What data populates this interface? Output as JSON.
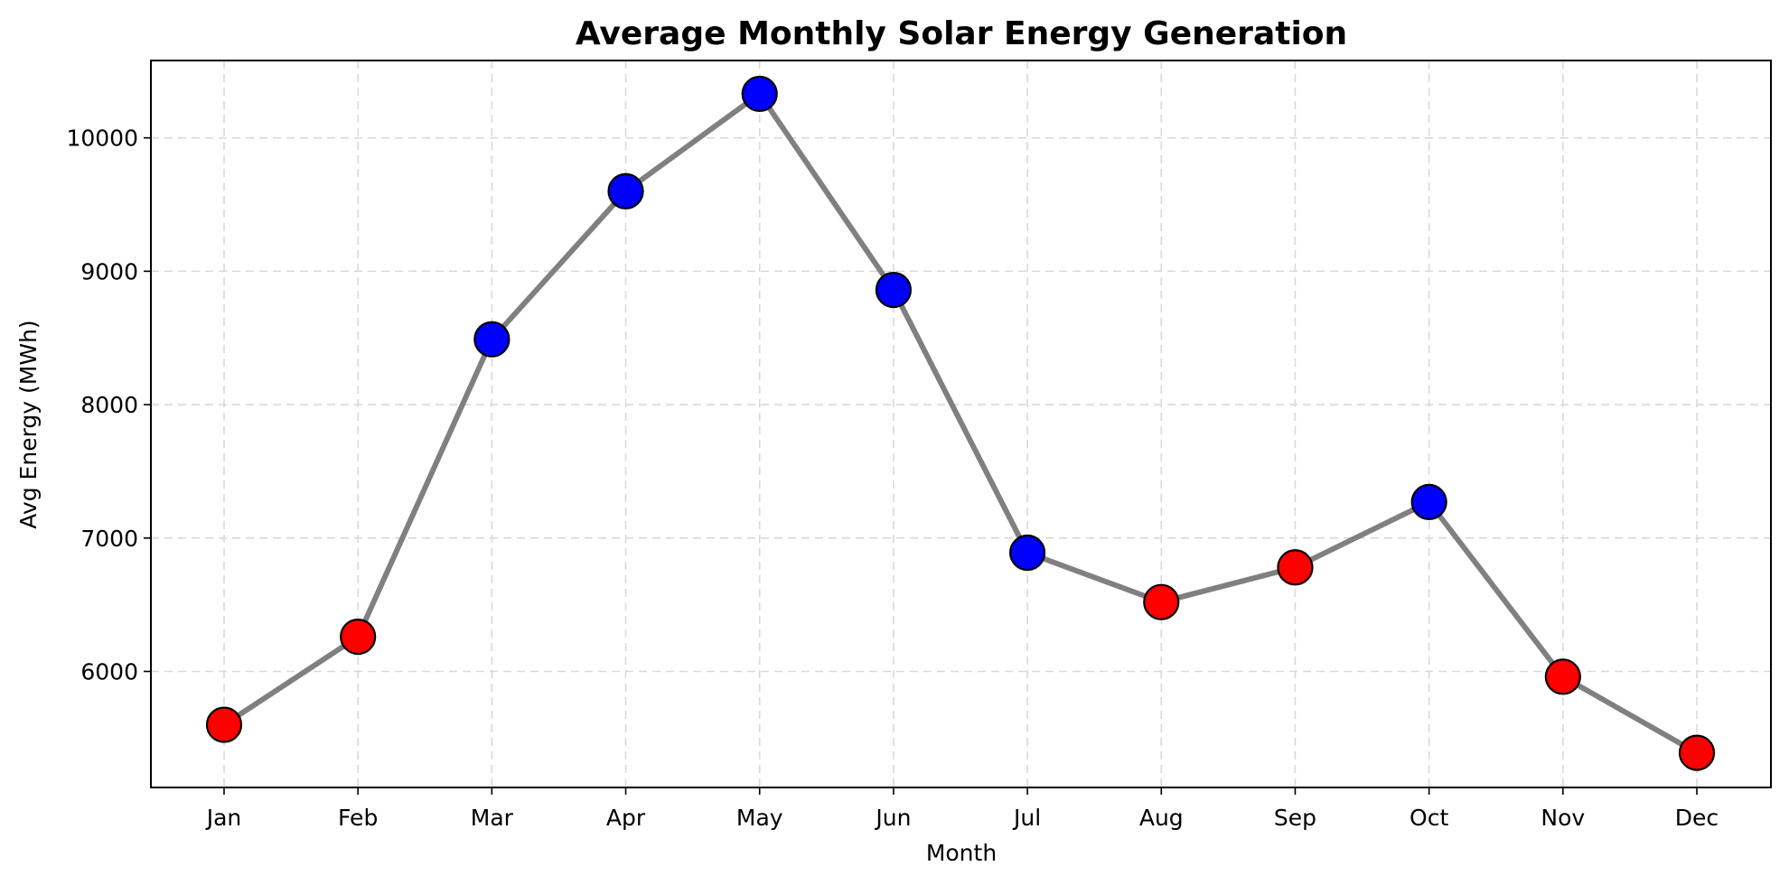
{
  "chart_data": {
    "type": "line",
    "title": "Average Monthly Solar Energy Generation",
    "xlabel": "Month",
    "ylabel": "Avg Energy (MWh)",
    "categories": [
      "Jan",
      "Feb",
      "Mar",
      "Apr",
      "May",
      "Jun",
      "Jul",
      "Aug",
      "Sep",
      "Oct",
      "Nov",
      "Dec"
    ],
    "values": [
      5600,
      6260,
      8490,
      9600,
      10330,
      8860,
      6890,
      6520,
      6780,
      7270,
      5960,
      5390
    ],
    "point_colors": [
      "#ff0000",
      "#ff0000",
      "#0000ff",
      "#0000ff",
      "#0000ff",
      "#0000ff",
      "#0000ff",
      "#ff0000",
      "#ff0000",
      "#0000ff",
      "#ff0000",
      "#ff0000"
    ],
    "line_color": "#808080",
    "marker_edge_color": "#000000",
    "ylim": [
      5130,
      10580
    ],
    "yticks": [
      6000,
      7000,
      8000,
      9000,
      10000
    ],
    "grid": true,
    "legend": false
  }
}
